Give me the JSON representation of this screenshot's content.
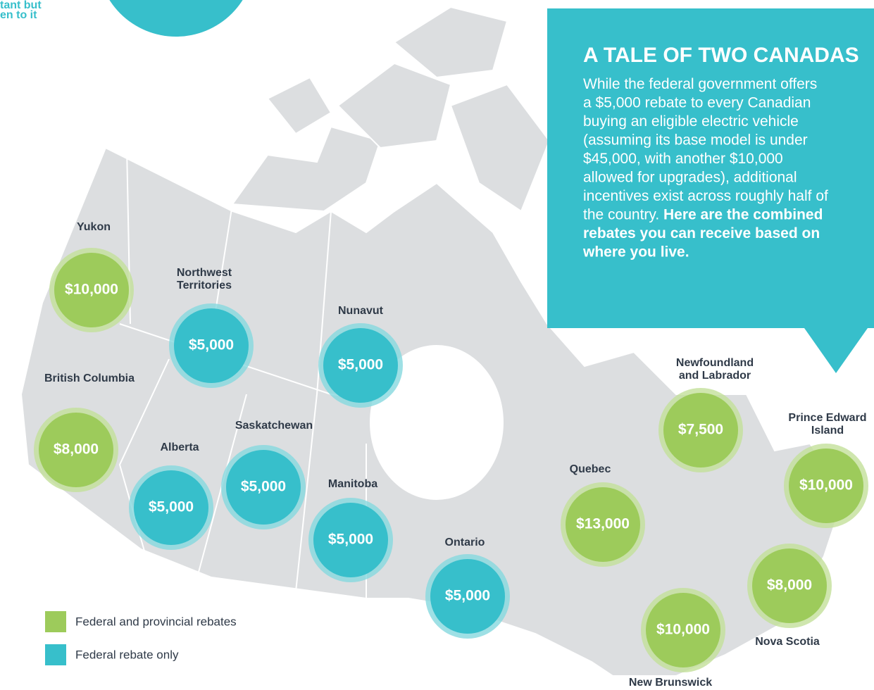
{
  "corner_text": [
    "tant but",
    "en to it"
  ],
  "callout": {
    "title": "A TALE OF TWO CANADAS",
    "lines": [
      [
        {
          "text": "While the federal government offers"
        }
      ],
      [
        {
          "text": "a $5,000 rebate to every Canadian"
        }
      ],
      [
        {
          "text": "buying an eligible electric vehicle"
        }
      ],
      [
        {
          "text": "(assuming its base model is under"
        }
      ],
      [
        {
          "text": "$45,000, with another $10,000"
        }
      ],
      [
        {
          "text": "allowed for upgrades), additional"
        }
      ],
      [
        {
          "text": "incentives exist across roughly half of"
        }
      ],
      [
        {
          "text": "the country. "
        },
        {
          "text": "Here are the combined",
          "bold": true
        }
      ],
      [
        {
          "text": "rebates you can receive based on",
          "bold": true
        }
      ],
      [
        {
          "text": "where you live.",
          "bold": true
        }
      ]
    ]
  },
  "legend": [
    {
      "label": "Federal and provincial rebates",
      "color": "#9dcb5b"
    },
    {
      "label": "Federal rebate only",
      "color": "#37bfcb"
    }
  ],
  "provinces": [
    {
      "name": [
        "Yukon"
      ],
      "rebate": "$10,000",
      "legend": 0
    },
    {
      "name": [
        "Northwest",
        "Territories"
      ],
      "rebate": "$5,000",
      "legend": 1
    },
    {
      "name": [
        "Nunavut"
      ],
      "rebate": "$5,000",
      "legend": 1
    },
    {
      "name": [
        "British Columbia"
      ],
      "rebate": "$8,000",
      "legend": 0
    },
    {
      "name": [
        "Alberta"
      ],
      "rebate": "$5,000",
      "legend": 1
    },
    {
      "name": [
        "Saskatchewan"
      ],
      "rebate": "$5,000",
      "legend": 1
    },
    {
      "name": [
        "Manitoba"
      ],
      "rebate": "$5,000",
      "legend": 1
    },
    {
      "name": [
        "Ontario"
      ],
      "rebate": "$5,000",
      "legend": 1
    },
    {
      "name": [
        "Quebec"
      ],
      "rebate": "$13,000",
      "legend": 0
    },
    {
      "name": [
        "Newfoundland",
        "and Labrador"
      ],
      "rebate": "$7,500",
      "legend": 0
    },
    {
      "name": [
        "Prince Edward",
        "Island"
      ],
      "rebate": "$10,000",
      "legend": 0
    },
    {
      "name": [
        "Nova Scotia"
      ],
      "rebate": "$8,000",
      "legend": 0
    },
    {
      "name": [
        "New Brunswick"
      ],
      "rebate": "$10,000",
      "legend": 0
    }
  ]
}
